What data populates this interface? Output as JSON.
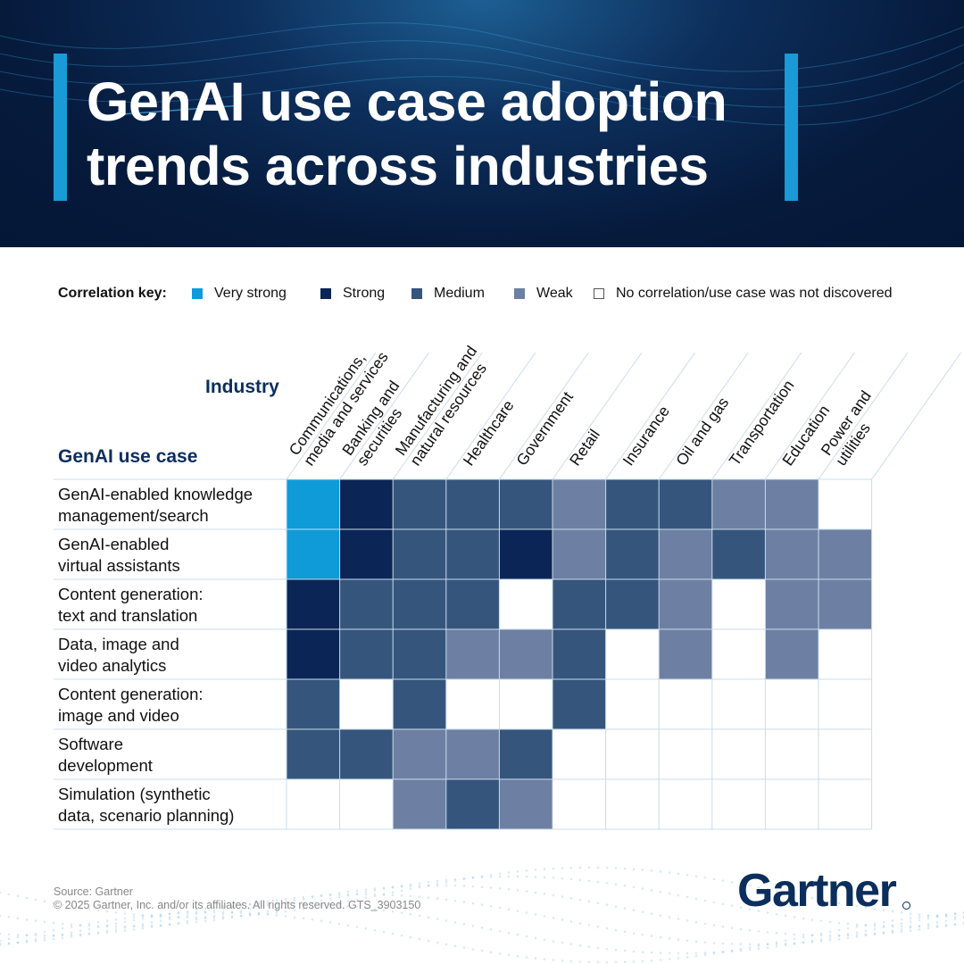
{
  "title_line1": "GenAI use case adoption",
  "title_line2": "trends across industries",
  "legend": {
    "label": "Correlation key:",
    "items": [
      {
        "key": "very_strong",
        "label": "Very strong",
        "color": "#0e9bd8"
      },
      {
        "key": "strong",
        "label": "Strong",
        "color": "#0b2656"
      },
      {
        "key": "medium",
        "label": "Medium",
        "color": "#35557c"
      },
      {
        "key": "weak",
        "label": "Weak",
        "color": "#6d80a3"
      },
      {
        "key": "none",
        "label": "No correlation/use case was not discovered",
        "color": "#ffffff"
      }
    ]
  },
  "chart_data": {
    "type": "heatmap",
    "x_title": "Industry",
    "y_title": "GenAI use case",
    "industries": [
      [
        "Communications,",
        "media and services"
      ],
      [
        "Banking and",
        "securities"
      ],
      [
        "Manufacturing and",
        "natural resources"
      ],
      [
        "Healthcare"
      ],
      [
        "Government"
      ],
      [
        "Retail"
      ],
      [
        "Insurance"
      ],
      [
        "Oil and gas"
      ],
      [
        "Transportation"
      ],
      [
        "Education"
      ],
      [
        "Power and",
        "utilities"
      ]
    ],
    "use_cases": [
      [
        "GenAI-enabled knowledge",
        "management/search"
      ],
      [
        "GenAI-enabled",
        "virtual assistants"
      ],
      [
        "Content generation:",
        "text and translation"
      ],
      [
        "Data, image and",
        "video analytics"
      ],
      [
        "Content generation:",
        "image and video"
      ],
      [
        "Software",
        "development"
      ],
      [
        "Simulation (synthetic",
        "data, scenario planning)"
      ]
    ],
    "levels": [
      "none",
      "weak",
      "medium",
      "strong",
      "very_strong"
    ],
    "matrix": [
      [
        "very_strong",
        "strong",
        "medium",
        "medium",
        "medium",
        "weak",
        "medium",
        "medium",
        "weak",
        "weak",
        "none"
      ],
      [
        "very_strong",
        "strong",
        "medium",
        "medium",
        "strong",
        "weak",
        "medium",
        "weak",
        "medium",
        "weak",
        "weak"
      ],
      [
        "strong",
        "medium",
        "medium",
        "medium",
        "none",
        "medium",
        "medium",
        "weak",
        "none",
        "weak",
        "weak"
      ],
      [
        "strong",
        "medium",
        "medium",
        "weak",
        "weak",
        "medium",
        "none",
        "weak",
        "none",
        "weak",
        "none"
      ],
      [
        "medium",
        "none",
        "medium",
        "none",
        "none",
        "medium",
        "none",
        "none",
        "none",
        "none",
        "none"
      ],
      [
        "medium",
        "medium",
        "weak",
        "weak",
        "medium",
        "none",
        "none",
        "none",
        "none",
        "none",
        "none"
      ],
      [
        "none",
        "none",
        "weak",
        "medium",
        "weak",
        "none",
        "none",
        "none",
        "none",
        "none",
        "none"
      ]
    ]
  },
  "footer": {
    "source": "Source: Gartner",
    "copyright": "© 2025 Gartner, Inc. and/or its affiliates. All rights reserved. GTS_3903150",
    "logo": "Gartner"
  }
}
